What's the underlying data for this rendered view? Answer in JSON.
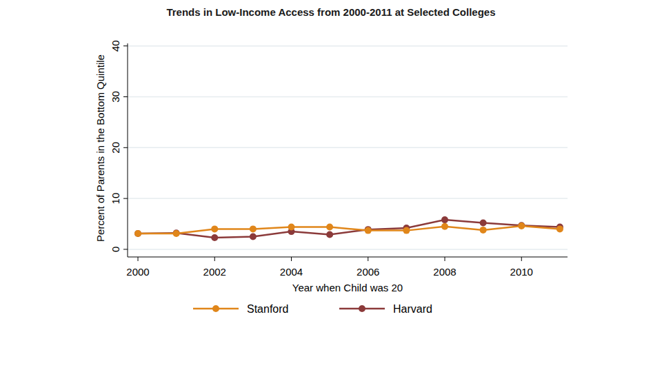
{
  "chart_data": {
    "type": "line",
    "title": "Trends in Low-Income Access from 2000-2011 at Selected Colleges",
    "x_label": "Year when Child was 20",
    "y_label": "Percent of Parents in the Bottom Quintile",
    "x": [
      2000,
      2001,
      2002,
      2003,
      2004,
      2005,
      2006,
      2007,
      2008,
      2009,
      2010,
      2011
    ],
    "series": [
      {
        "name": "Harvard",
        "color": "#8b3a3a",
        "marker": "circle",
        "values": [
          3.1,
          3.2,
          2.3,
          2.5,
          3.5,
          2.9,
          3.9,
          4.2,
          5.8,
          5.2,
          4.7,
          4.4
        ]
      },
      {
        "name": "Stanford",
        "color": "#e0861a",
        "marker": "circle",
        "values": [
          3.1,
          3.1,
          4.0,
          4.0,
          4.4,
          4.4,
          3.7,
          3.7,
          4.5,
          3.8,
          4.6,
          4.0
        ]
      }
    ],
    "xlim": [
      1999.73,
      2011.2
    ],
    "ylim": [
      -1.5,
      40.5
    ],
    "xticks": [
      2000,
      2002,
      2004,
      2006,
      2008,
      2010
    ],
    "yticks": [
      0,
      10,
      20,
      30,
      40
    ],
    "grid": true,
    "legend": "bottom"
  }
}
